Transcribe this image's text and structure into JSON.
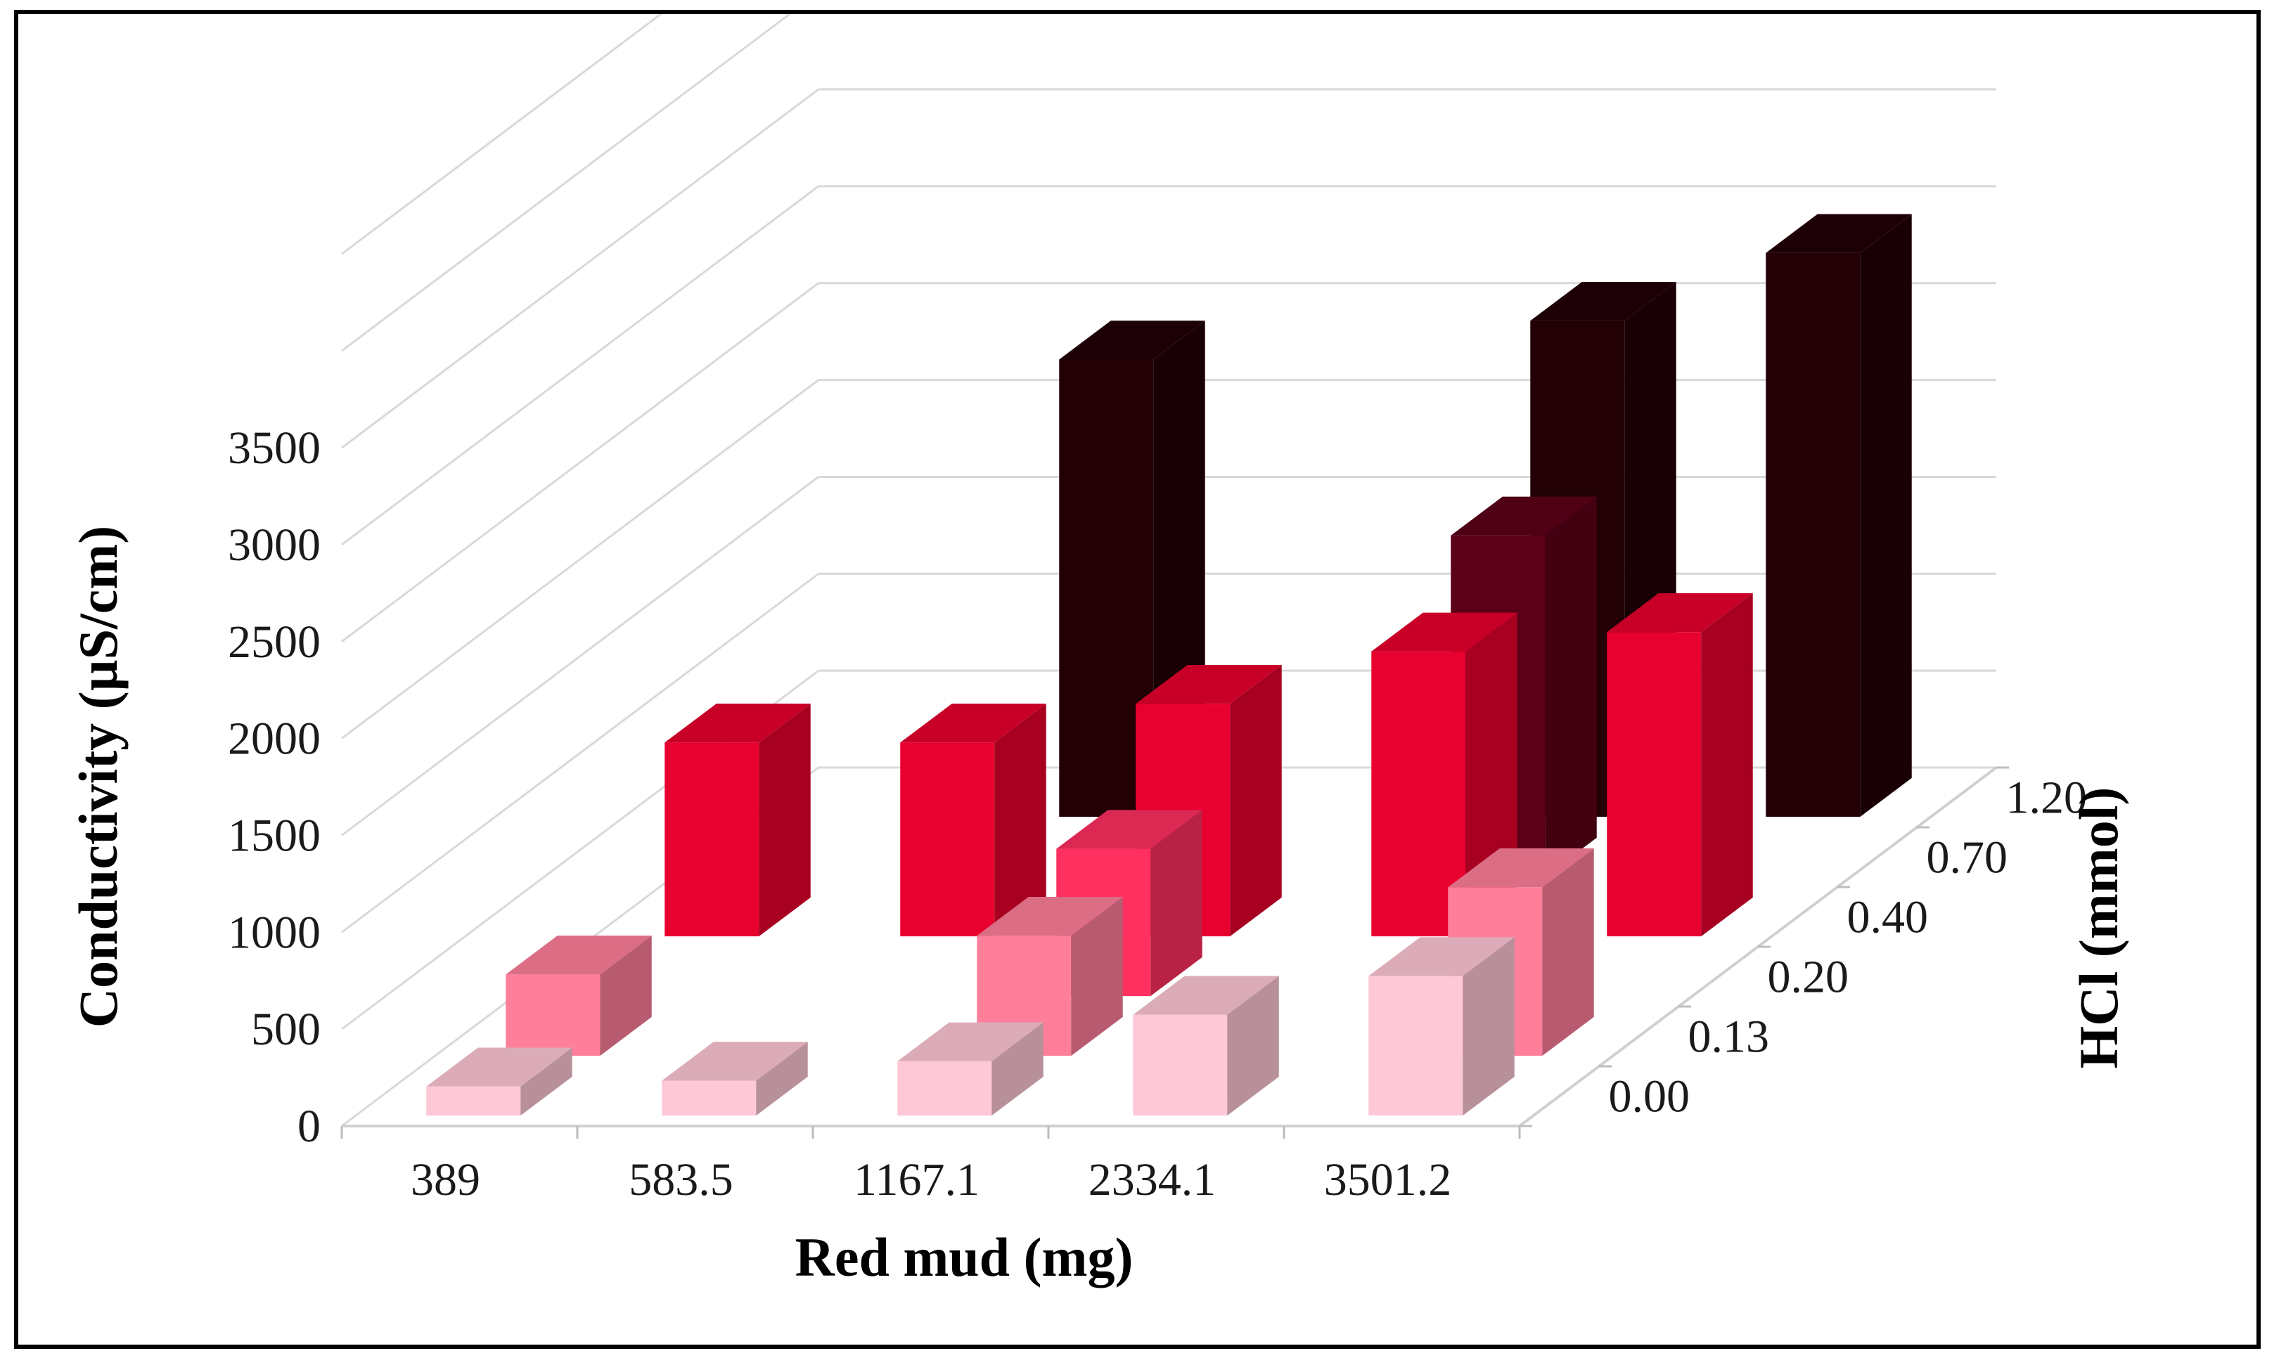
{
  "chart_data": {
    "type": "bar3d",
    "title": "",
    "xlabel": "Red mud (mg)",
    "ylabel": "Conductivity (µS/cm)",
    "zlabel": "HCl (mmol)",
    "categories": [
      "389",
      "583.5",
      "1167.1",
      "2334.1",
      "3501.2"
    ],
    "y_ticks": [
      "0",
      "500",
      "1000",
      "1500",
      "2000",
      "2500",
      "3000",
      "3500"
    ],
    "ylim": [
      0,
      3500
    ],
    "depth_labels": [
      "0.00",
      "0.13",
      "0.20",
      "0.40",
      "0.70",
      "1.20"
    ],
    "series": [
      {
        "name": "0.00",
        "color": "#ffc8d6",
        "values": [
          150,
          180,
          280,
          520,
          720
        ]
      },
      {
        "name": "0.13",
        "color": "#ff7f9b",
        "values": [
          420,
          null,
          620,
          null,
          870
        ]
      },
      {
        "name": "0.20",
        "color": "#ff3060",
        "values": [
          null,
          null,
          760,
          null,
          null
        ]
      },
      {
        "name": "0.40",
        "color": "#e8002e",
        "values": [
          1000,
          1000,
          1200,
          1470,
          1570
        ]
      },
      {
        "name": "0.70",
        "color": "#5c0018",
        "values": [
          null,
          null,
          null,
          1760,
          null
        ]
      },
      {
        "name": "1.20",
        "color": "#220006",
        "values": [
          null,
          2360,
          null,
          2560,
          2910
        ]
      }
    ]
  }
}
